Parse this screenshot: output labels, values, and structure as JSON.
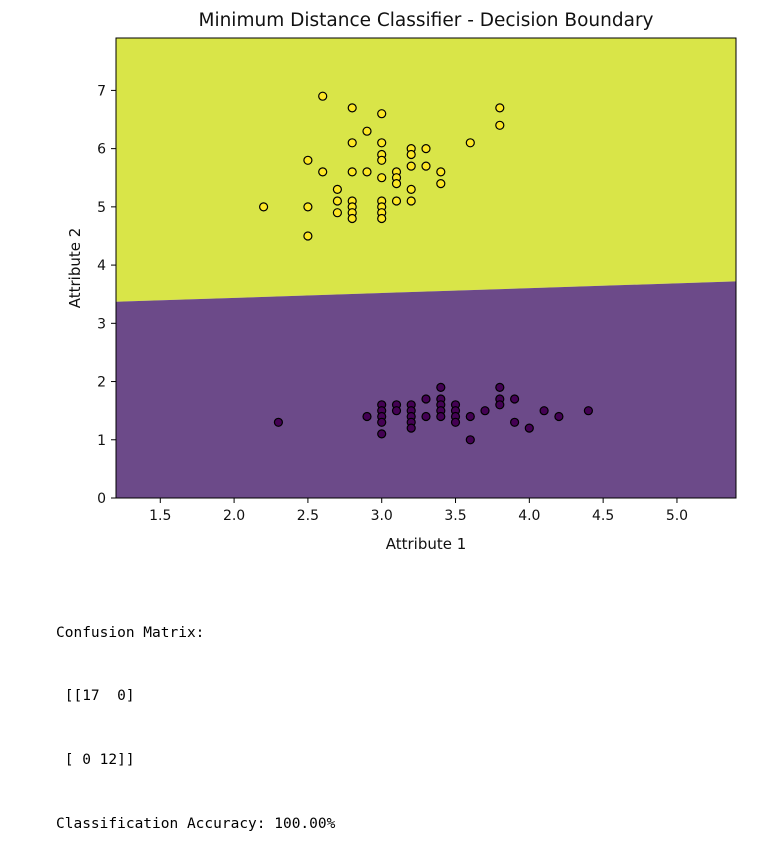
{
  "chart_data": {
    "type": "scatter",
    "title": "Minimum Distance Classifier - Decision Boundary",
    "xlabel": "Attribute 1",
    "ylabel": "Attribute 2",
    "xlim": [
      1.2,
      5.4
    ],
    "ylim": [
      0,
      7.9
    ],
    "xticks": [
      "1.5",
      "2.0",
      "2.5",
      "3.0",
      "3.5",
      "4.0",
      "4.5",
      "5.0"
    ],
    "yticks": [
      "0",
      "1",
      "2",
      "3",
      "4",
      "5",
      "6",
      "7"
    ],
    "grid": false,
    "colors": {
      "region_upper": "#d9e548",
      "region_lower": "#6c4a89",
      "class_upper": "#fde725",
      "class_lower": "#440154",
      "marker_edge": "#000000"
    },
    "decision_boundary": [
      [
        1.2,
        3.37
      ],
      [
        5.4,
        3.72
      ]
    ],
    "series": [
      {
        "points": [
          [
            2.6,
            6.9
          ],
          [
            2.8,
            6.7
          ],
          [
            3.0,
            6.6
          ],
          [
            3.8,
            6.7
          ],
          [
            3.8,
            6.4
          ],
          [
            2.9,
            6.3
          ],
          [
            2.8,
            6.1
          ],
          [
            3.0,
            6.1
          ],
          [
            3.6,
            6.1
          ],
          [
            3.2,
            6.0
          ],
          [
            3.3,
            6.0
          ],
          [
            3.0,
            5.9
          ],
          [
            3.2,
            5.9
          ],
          [
            2.5,
            5.8
          ],
          [
            3.0,
            5.8
          ],
          [
            3.2,
            5.7
          ],
          [
            3.3,
            5.7
          ],
          [
            2.6,
            5.6
          ],
          [
            2.8,
            5.6
          ],
          [
            2.9,
            5.6
          ],
          [
            3.1,
            5.6
          ],
          [
            3.4,
            5.6
          ],
          [
            3.0,
            5.5
          ],
          [
            3.1,
            5.5
          ],
          [
            3.1,
            5.4
          ],
          [
            3.4,
            5.4
          ],
          [
            2.7,
            5.3
          ],
          [
            3.2,
            5.3
          ],
          [
            2.7,
            5.1
          ],
          [
            2.8,
            5.1
          ],
          [
            3.0,
            5.1
          ],
          [
            3.1,
            5.1
          ],
          [
            3.2,
            5.1
          ],
          [
            2.2,
            5.0
          ],
          [
            2.5,
            5.0
          ],
          [
            2.8,
            5.0
          ],
          [
            3.0,
            5.0
          ],
          [
            2.7,
            4.9
          ],
          [
            2.8,
            4.9
          ],
          [
            3.0,
            4.9
          ],
          [
            2.8,
            4.8
          ],
          [
            3.0,
            4.8
          ],
          [
            2.5,
            4.5
          ]
        ]
      },
      {
        "points": [
          [
            3.4,
            1.9
          ],
          [
            3.8,
            1.9
          ],
          [
            3.3,
            1.7
          ],
          [
            3.4,
            1.7
          ],
          [
            3.8,
            1.7
          ],
          [
            3.9,
            1.7
          ],
          [
            3.1,
            1.6
          ],
          [
            3.2,
            1.6
          ],
          [
            3.4,
            1.6
          ],
          [
            3.5,
            1.6
          ],
          [
            3.0,
            1.6
          ],
          [
            3.8,
            1.6
          ],
          [
            3.1,
            1.5
          ],
          [
            3.4,
            1.5
          ],
          [
            3.5,
            1.5
          ],
          [
            3.7,
            1.5
          ],
          [
            4.1,
            1.5
          ],
          [
            4.4,
            1.5
          ],
          [
            3.0,
            1.5
          ],
          [
            3.2,
            1.5
          ],
          [
            2.9,
            1.4
          ],
          [
            3.0,
            1.4
          ],
          [
            3.2,
            1.4
          ],
          [
            3.3,
            1.4
          ],
          [
            3.4,
            1.4
          ],
          [
            3.5,
            1.4
          ],
          [
            3.6,
            1.4
          ],
          [
            4.2,
            1.4
          ],
          [
            2.3,
            1.3
          ],
          [
            3.0,
            1.3
          ],
          [
            3.2,
            1.3
          ],
          [
            3.5,
            1.3
          ],
          [
            3.9,
            1.3
          ],
          [
            3.2,
            1.2
          ],
          [
            4.0,
            1.2
          ],
          [
            3.0,
            1.1
          ],
          [
            3.6,
            1.0
          ]
        ]
      }
    ]
  },
  "output": {
    "lines": [
      "Confusion Matrix:",
      " [[17  0]",
      " [ 0 12]]",
      "Classification Accuracy: 100.00%"
    ]
  }
}
